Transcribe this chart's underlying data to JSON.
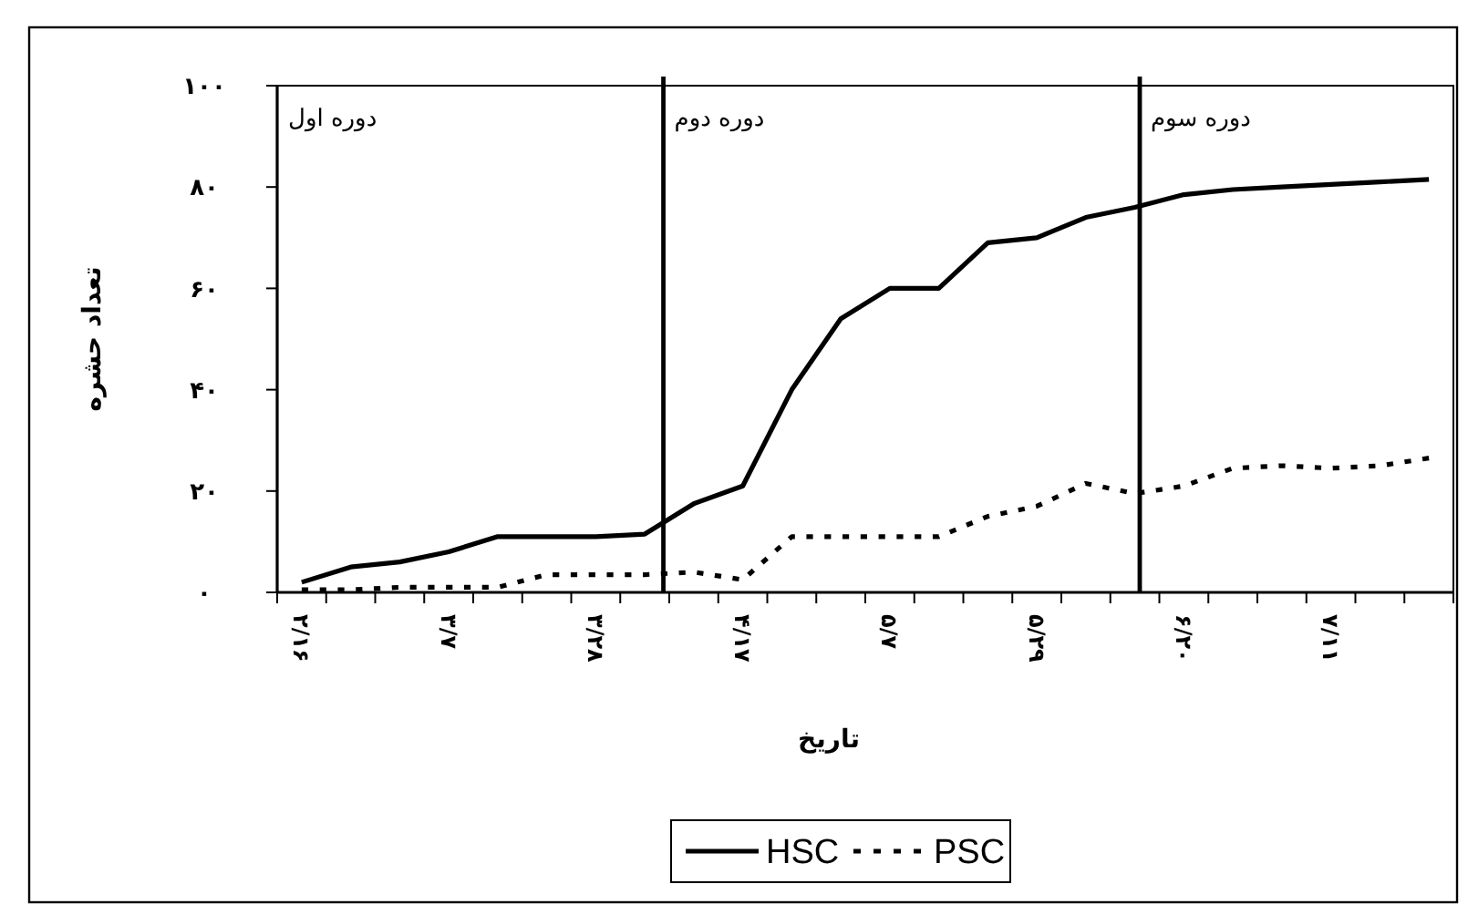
{
  "chart_data": {
    "type": "line",
    "xlabel": "تاریخ",
    "ylabel": "تعداد حشره",
    "categories": [
      "۲/۱۶",
      null,
      null,
      "۳/۷",
      null,
      null,
      "۳/۲۸",
      null,
      null,
      "۴/۱۷",
      null,
      null,
      "۵/۷",
      null,
      null,
      "۵/۲۹",
      null,
      null,
      "۶/۲۰",
      null,
      null,
      "۷/۱۱",
      null,
      null
    ],
    "ylim": [
      0,
      100
    ],
    "yticks": [
      {
        "value": 0,
        "label": "۰"
      },
      {
        "value": 20,
        "label": "۲۰"
      },
      {
        "value": 40,
        "label": "۴۰"
      },
      {
        "value": 60,
        "label": "۶۰"
      },
      {
        "value": 80,
        "label": "۸۰"
      },
      {
        "value": 100,
        "label": "۱۰۰"
      }
    ],
    "series": [
      {
        "name": "HSC",
        "color": "#000000",
        "line_style": "solid",
        "values": [
          2,
          5,
          6,
          8,
          11,
          11,
          11,
          11.5,
          17.5,
          21,
          40,
          54,
          60,
          60,
          69,
          70,
          74,
          76,
          78.5,
          79.5,
          80,
          80.5,
          81,
          81.5
        ]
      },
      {
        "name": "PSC",
        "color": "#000000",
        "line_style": "dotted",
        "values": [
          0.5,
          0.5,
          1,
          1,
          1,
          3.5,
          3.5,
          3.5,
          4,
          2.5,
          11,
          11,
          11,
          11,
          15,
          17,
          21.5,
          19.5,
          21,
          24.5,
          25,
          24.5,
          25,
          26.5
        ]
      }
    ],
    "annotations": [
      "دوره اول",
      "دوره دوم",
      "دوره سوم"
    ],
    "legend": "bottom",
    "marker": "none"
  }
}
